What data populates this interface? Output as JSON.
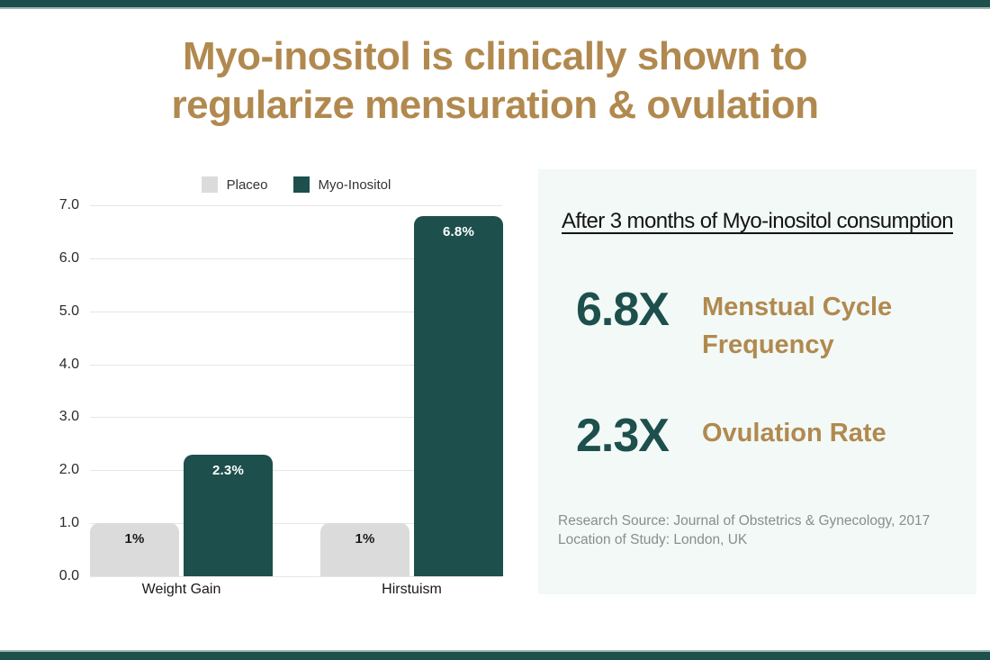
{
  "title": {
    "line1": "Myo-inositol is clinically shown to",
    "line2": "regularize mensuration & ovulation"
  },
  "colors": {
    "accent_teal": "#1d4f4c",
    "accent_tan": "#b1894f",
    "panel_bg": "#f2f9f6",
    "placebo_gray": "#dbdbdb",
    "gridline": "#e6e6e6"
  },
  "chart_data": {
    "type": "bar",
    "categories": [
      "Weight Gain",
      "Hirstuism"
    ],
    "series": [
      {
        "name": "Placeo",
        "color": "#dbdbdb",
        "label_color": "#1a1a1a",
        "values": [
          1,
          1
        ],
        "labels": [
          "1%",
          "1%"
        ]
      },
      {
        "name": "Myo-Inositol",
        "color": "#1d4f4c",
        "label_color": "#ffffff",
        "values": [
          2.3,
          6.8
        ],
        "labels": [
          "2.3%",
          "6.8%"
        ]
      }
    ],
    "yticks": [
      0,
      1,
      2,
      3,
      4,
      5,
      6,
      7
    ],
    "ytick_labels": [
      "0.0",
      "1.0",
      "2.0",
      "3.0",
      "4.0",
      "5.0",
      "6.0",
      "7.0"
    ],
    "ylim": [
      0,
      7
    ],
    "grid": true,
    "legend_position": "top",
    "title": "",
    "xlabel": "",
    "ylabel": ""
  },
  "panel": {
    "heading": "After 3 months of Myo-inositol consumption",
    "stats": [
      {
        "value": "6.8X",
        "label": "Menstual Cycle Frequency"
      },
      {
        "value": "2.3X",
        "label": "Ovulation Rate"
      }
    ],
    "source_line1": "Research Source: Journal of Obstetrics & Gynecology, 2017",
    "source_line2": "Location of Study: London, UK"
  }
}
